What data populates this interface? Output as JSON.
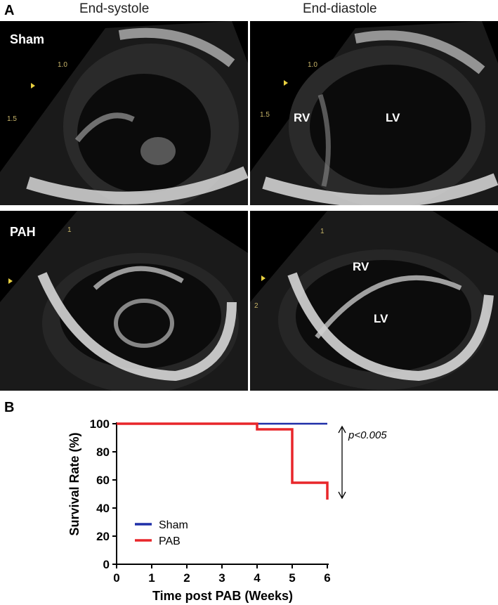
{
  "panels": {
    "a": "A",
    "b": "B"
  },
  "columns": {
    "left": "End-systole",
    "right": "End-diastole"
  },
  "rows": {
    "sham": "Sham",
    "pah": "PAH"
  },
  "chambers": {
    "rv": "RV",
    "lv": "LV"
  },
  "depth_marks": {
    "m1": "1.0",
    "m15": "1.5",
    "m1short": "1",
    "m2": "2"
  },
  "chart_data": {
    "type": "line",
    "xlabel": "Time post PAB (Weeks)",
    "ylabel": "Survival Rate (%)",
    "xlim": [
      0,
      6
    ],
    "ylim": [
      0,
      100
    ],
    "xticks": [
      0,
      1,
      2,
      3,
      4,
      5,
      6
    ],
    "yticks": [
      0,
      20,
      40,
      60,
      80,
      100
    ],
    "legend_position": "bottom-left",
    "annotation": "p<0.005",
    "series": [
      {
        "name": "Sham",
        "color": "#1f2fa8",
        "step": true,
        "points": [
          [
            0,
            100
          ],
          [
            6,
            100
          ]
        ]
      },
      {
        "name": "PAB",
        "color": "#e8262a",
        "step": true,
        "points": [
          [
            0,
            100
          ],
          [
            4,
            100
          ],
          [
            4,
            96
          ],
          [
            5,
            96
          ],
          [
            5,
            58
          ],
          [
            6,
            58
          ],
          [
            6,
            46
          ]
        ]
      }
    ]
  }
}
